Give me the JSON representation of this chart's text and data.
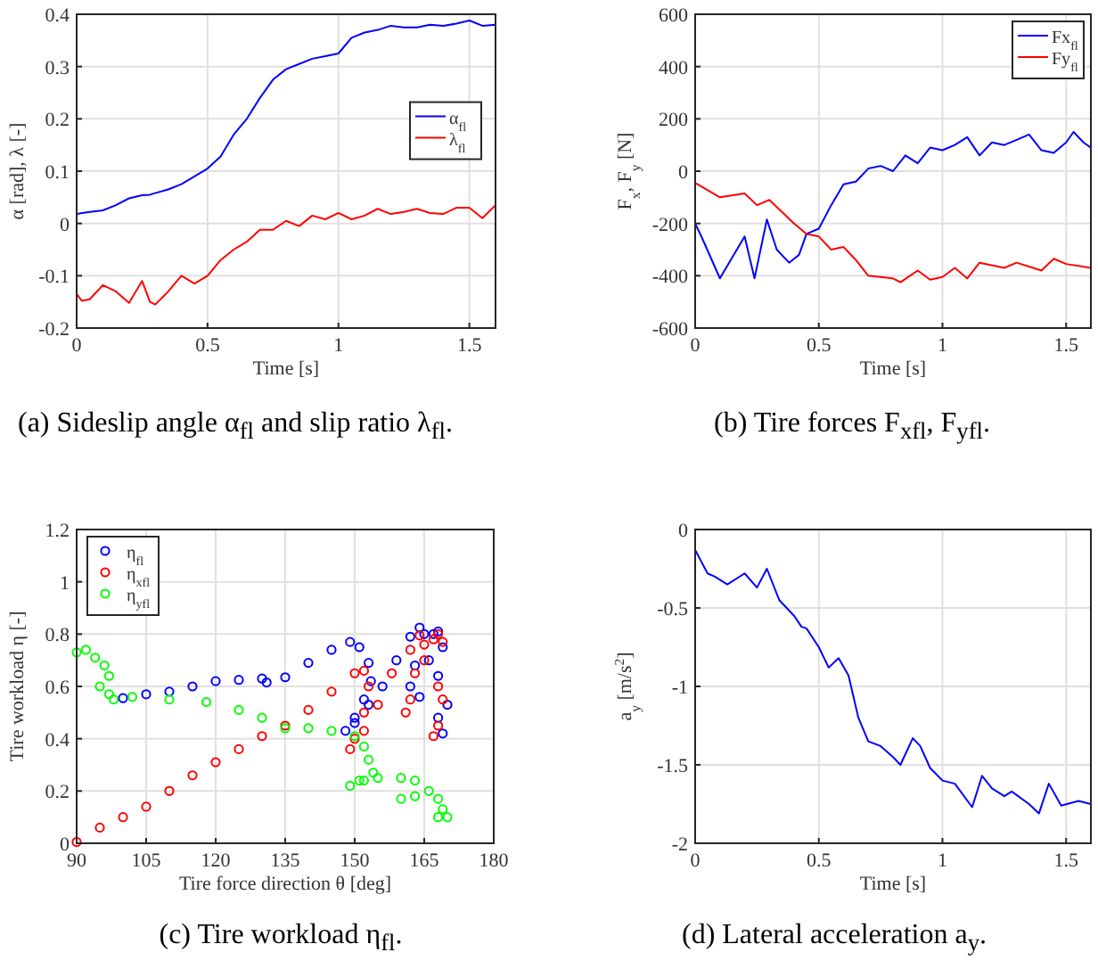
{
  "chart_data": [
    {
      "type": "line",
      "title": "(a) Sideslip angle α$_{fl}$ and slip ratio λ$_{fl}$.",
      "xlabel": "Time [s]",
      "ylabel": "α [rad], λ [-]",
      "xlim": [
        0,
        1.6
      ],
      "xticks": [
        0,
        0.5,
        1,
        1.5
      ],
      "ylim": [
        -0.2,
        0.4
      ],
      "yticks": [
        -0.2,
        -0.1,
        0,
        0.1,
        0.2,
        0.3,
        0.4
      ],
      "grid": true,
      "legend": "right",
      "x": [
        0,
        0.02,
        0.05,
        0.1,
        0.15,
        0.2,
        0.25,
        0.28,
        0.3,
        0.35,
        0.4,
        0.45,
        0.5,
        0.55,
        0.6,
        0.65,
        0.7,
        0.75,
        0.8,
        0.85,
        0.9,
        0.95,
        1.0,
        1.05,
        1.1,
        1.15,
        1.2,
        1.25,
        1.3,
        1.35,
        1.4,
        1.45,
        1.5,
        1.55,
        1.6
      ],
      "series": [
        {
          "name": "α$_{fl}$",
          "color": "#0000ff",
          "values": [
            0.018,
            0.02,
            0.022,
            0.025,
            0.035,
            0.048,
            0.054,
            0.055,
            0.058,
            0.065,
            0.075,
            0.09,
            0.105,
            0.128,
            0.17,
            0.2,
            0.24,
            0.275,
            0.295,
            0.305,
            0.315,
            0.32,
            0.325,
            0.355,
            0.365,
            0.37,
            0.378,
            0.375,
            0.375,
            0.38,
            0.378,
            0.382,
            0.388,
            0.378,
            0.38
          ]
        },
        {
          "name": "λ$_{fl}$",
          "color": "#ff0000",
          "values": [
            -0.135,
            -0.148,
            -0.145,
            -0.118,
            -0.13,
            -0.152,
            -0.11,
            -0.15,
            -0.155,
            -0.13,
            -0.1,
            -0.115,
            -0.1,
            -0.07,
            -0.05,
            -0.035,
            -0.012,
            -0.012,
            0.005,
            -0.005,
            0.015,
            0.008,
            0.02,
            0.008,
            0.015,
            0.028,
            0.018,
            0.022,
            0.028,
            0.02,
            0.018,
            0.03,
            0.03,
            0.01,
            0.035
          ]
        }
      ]
    },
    {
      "type": "line",
      "title": "(b) Tire forces F$_{xfl}$, F$_{yfl}$.",
      "xlabel": "Time [s]",
      "ylabel": "F$_{x}$, F$_{y}$ [N]",
      "xlim": [
        0,
        1.6
      ],
      "xticks": [
        0,
        0.5,
        1,
        1.5
      ],
      "ylim": [
        -600,
        600
      ],
      "yticks": [
        -600,
        -400,
        -200,
        0,
        200,
        400,
        600
      ],
      "grid": true,
      "legend": "top right",
      "series": [
        {
          "name": "Fx$_{fl}$",
          "color": "#0000ff",
          "x": [
            0,
            0.03,
            0.1,
            0.15,
            0.2,
            0.24,
            0.29,
            0.33,
            0.38,
            0.42,
            0.45,
            0.5,
            0.55,
            0.6,
            0.65,
            0.7,
            0.75,
            0.8,
            0.85,
            0.9,
            0.95,
            1.0,
            1.05,
            1.1,
            1.15,
            1.2,
            1.25,
            1.3,
            1.35,
            1.4,
            1.45,
            1.5,
            1.53,
            1.57,
            1.6
          ],
          "values": [
            -200,
            -260,
            -410,
            -330,
            -250,
            -410,
            -185,
            -300,
            -350,
            -320,
            -240,
            -220,
            -130,
            -50,
            -40,
            10,
            20,
            0,
            60,
            30,
            90,
            80,
            100,
            130,
            60,
            110,
            100,
            120,
            140,
            80,
            70,
            110,
            150,
            110,
            90
          ]
        },
        {
          "name": "Fy$_{fl}$",
          "color": "#ff0000",
          "x": [
            0,
            0.1,
            0.2,
            0.25,
            0.3,
            0.4,
            0.45,
            0.5,
            0.55,
            0.6,
            0.65,
            0.7,
            0.8,
            0.83,
            0.9,
            0.95,
            1.0,
            1.05,
            1.1,
            1.15,
            1.25,
            1.3,
            1.4,
            1.45,
            1.5,
            1.6
          ],
          "values": [
            -45,
            -100,
            -85,
            -130,
            -110,
            -200,
            -240,
            -250,
            -300,
            -290,
            -340,
            -400,
            -410,
            -425,
            -380,
            -415,
            -405,
            -370,
            -410,
            -350,
            -370,
            -350,
            -380,
            -335,
            -355,
            -370
          ]
        }
      ]
    },
    {
      "type": "scatter",
      "title": "(c) Tire workload η$_{fl}$.",
      "xlabel": "Tire force direction θ [deg]",
      "ylabel": "Tire workload η [-]",
      "xlim": [
        90,
        180
      ],
      "xticks": [
        90,
        105,
        120,
        135,
        150,
        165,
        180
      ],
      "ylim": [
        0,
        1.2
      ],
      "yticks": [
        0,
        0.2,
        0.4,
        0.6,
        0.8,
        1,
        1.2
      ],
      "grid": true,
      "legend": "top left",
      "marker": "circle",
      "series": [
        {
          "name": "η$_{fl}$",
          "color": "#0000ff",
          "x": [
            100,
            105,
            110,
            115,
            120,
            125,
            130,
            131,
            135,
            140,
            145,
            149,
            151,
            153,
            153.5,
            152,
            150,
            148,
            150,
            153,
            156,
            159,
            162,
            164,
            165,
            163,
            162,
            164,
            166,
            167,
            168,
            169,
            168,
            168,
            169,
            170
          ],
          "values": [
            0.555,
            0.57,
            0.58,
            0.6,
            0.62,
            0.625,
            0.63,
            0.615,
            0.635,
            0.69,
            0.74,
            0.77,
            0.75,
            0.69,
            0.62,
            0.55,
            0.48,
            0.43,
            0.46,
            0.53,
            0.6,
            0.7,
            0.79,
            0.825,
            0.8,
            0.68,
            0.6,
            0.56,
            0.7,
            0.8,
            0.81,
            0.75,
            0.64,
            0.48,
            0.42,
            0.53
          ]
        },
        {
          "name": "η$_{xfl}$",
          "color": "#ff0000",
          "x": [
            90,
            95,
            100,
            105,
            110,
            115,
            120,
            125,
            130,
            135,
            140,
            145,
            150,
            152,
            153,
            152,
            150,
            149,
            152,
            155,
            158,
            162,
            164,
            165,
            163,
            161,
            162,
            165,
            167,
            168,
            169,
            168,
            168,
            167,
            169
          ],
          "values": [
            0.005,
            0.06,
            0.1,
            0.14,
            0.2,
            0.26,
            0.31,
            0.36,
            0.41,
            0.45,
            0.51,
            0.58,
            0.65,
            0.66,
            0.6,
            0.5,
            0.4,
            0.36,
            0.43,
            0.53,
            0.65,
            0.74,
            0.795,
            0.76,
            0.65,
            0.5,
            0.55,
            0.7,
            0.78,
            0.8,
            0.77,
            0.6,
            0.45,
            0.41,
            0.55
          ]
        },
        {
          "name": "η$_{yfl}$",
          "color": "#00ff00",
          "x": [
            90,
            92,
            94,
            96,
            97,
            95,
            97,
            98,
            102,
            110,
            118,
            125,
            130,
            135,
            140,
            145,
            150,
            152,
            153,
            154,
            152,
            149,
            151,
            155,
            160,
            163,
            160,
            163,
            166,
            168,
            169,
            168,
            170
          ],
          "values": [
            0.73,
            0.74,
            0.71,
            0.68,
            0.64,
            0.6,
            0.57,
            0.55,
            0.56,
            0.55,
            0.54,
            0.51,
            0.48,
            0.44,
            0.44,
            0.43,
            0.41,
            0.37,
            0.32,
            0.27,
            0.24,
            0.22,
            0.24,
            0.25,
            0.25,
            0.24,
            0.17,
            0.18,
            0.2,
            0.17,
            0.13,
            0.1,
            0.1
          ]
        }
      ]
    },
    {
      "type": "line",
      "title": "(d) Lateral acceleration a$_{y}$.",
      "xlabel": "Time [s]",
      "ylabel": "a$_{y}$ [m/s$^{2}$]",
      "xlim": [
        0,
        1.6
      ],
      "xticks": [
        0,
        0.5,
        1,
        1.5
      ],
      "ylim": [
        -2,
        0
      ],
      "yticks": [
        -2,
        -1.5,
        -1,
        -0.5,
        0
      ],
      "grid": true,
      "x": [
        0,
        0.05,
        0.08,
        0.13,
        0.2,
        0.25,
        0.29,
        0.34,
        0.4,
        0.43,
        0.45,
        0.5,
        0.54,
        0.58,
        0.62,
        0.66,
        0.7,
        0.75,
        0.8,
        0.83,
        0.88,
        0.91,
        0.95,
        1.0,
        1.05,
        1.12,
        1.16,
        1.2,
        1.25,
        1.28,
        1.35,
        1.39,
        1.43,
        1.48,
        1.55,
        1.6
      ],
      "series": [
        {
          "color": "#0000ff",
          "values": [
            -0.13,
            -0.28,
            -0.3,
            -0.35,
            -0.28,
            -0.37,
            -0.25,
            -0.45,
            -0.55,
            -0.62,
            -0.63,
            -0.75,
            -0.88,
            -0.82,
            -0.93,
            -1.2,
            -1.35,
            -1.38,
            -1.45,
            -1.5,
            -1.33,
            -1.38,
            -1.52,
            -1.6,
            -1.62,
            -1.77,
            -1.57,
            -1.65,
            -1.7,
            -1.67,
            -1.75,
            -1.81,
            -1.62,
            -1.76,
            -1.73,
            -1.75
          ]
        }
      ]
    }
  ]
}
